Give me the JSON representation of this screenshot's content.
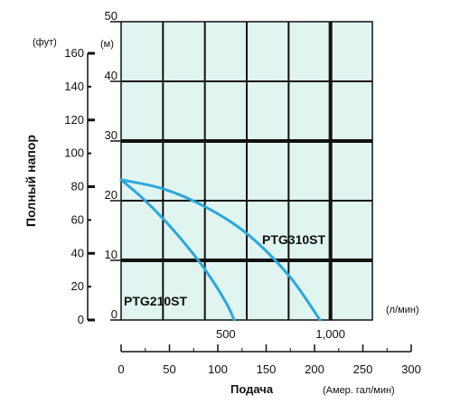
{
  "chart_data": {
    "type": "line",
    "ylabel_left": "Полный напор",
    "y_ft_unit": "(фут)",
    "y_m_unit": "(м)",
    "x_lmin_unit": "(л/мин)",
    "xlabel": "Подача",
    "x_gpm_unit": "(Амер. гал/мин)",
    "xlim_lmin": [
      0,
      1200
    ],
    "ylim_m": [
      0,
      50
    ],
    "y_ft_ticks": [
      "0",
      "20",
      "40",
      "60",
      "80",
      "100",
      "120",
      "140",
      "160"
    ],
    "y_m_ticks": [
      "0",
      "10",
      "20",
      "30",
      "40",
      "50"
    ],
    "x_lmin_ticks": [
      "500",
      "1,000"
    ],
    "x_gpm_ticks": [
      "0",
      "50",
      "100",
      "150",
      "200",
      "250",
      "300"
    ],
    "series": [
      {
        "name": "PTG210ST",
        "x": [
          0,
          100,
          200,
          300,
          400,
          500,
          540
        ],
        "y": [
          23.5,
          20.5,
          17,
          13,
          8.5,
          3,
          0
        ]
      },
      {
        "name": "PTG310ST",
        "x": [
          0,
          200,
          400,
          600,
          800,
          950
        ],
        "y": [
          23.5,
          22,
          19,
          14.5,
          7.5,
          0
        ]
      }
    ],
    "colors": {
      "plot_bg": "#e0f4f0",
      "curve": "#2aa8dc",
      "grid": "#111111"
    }
  }
}
